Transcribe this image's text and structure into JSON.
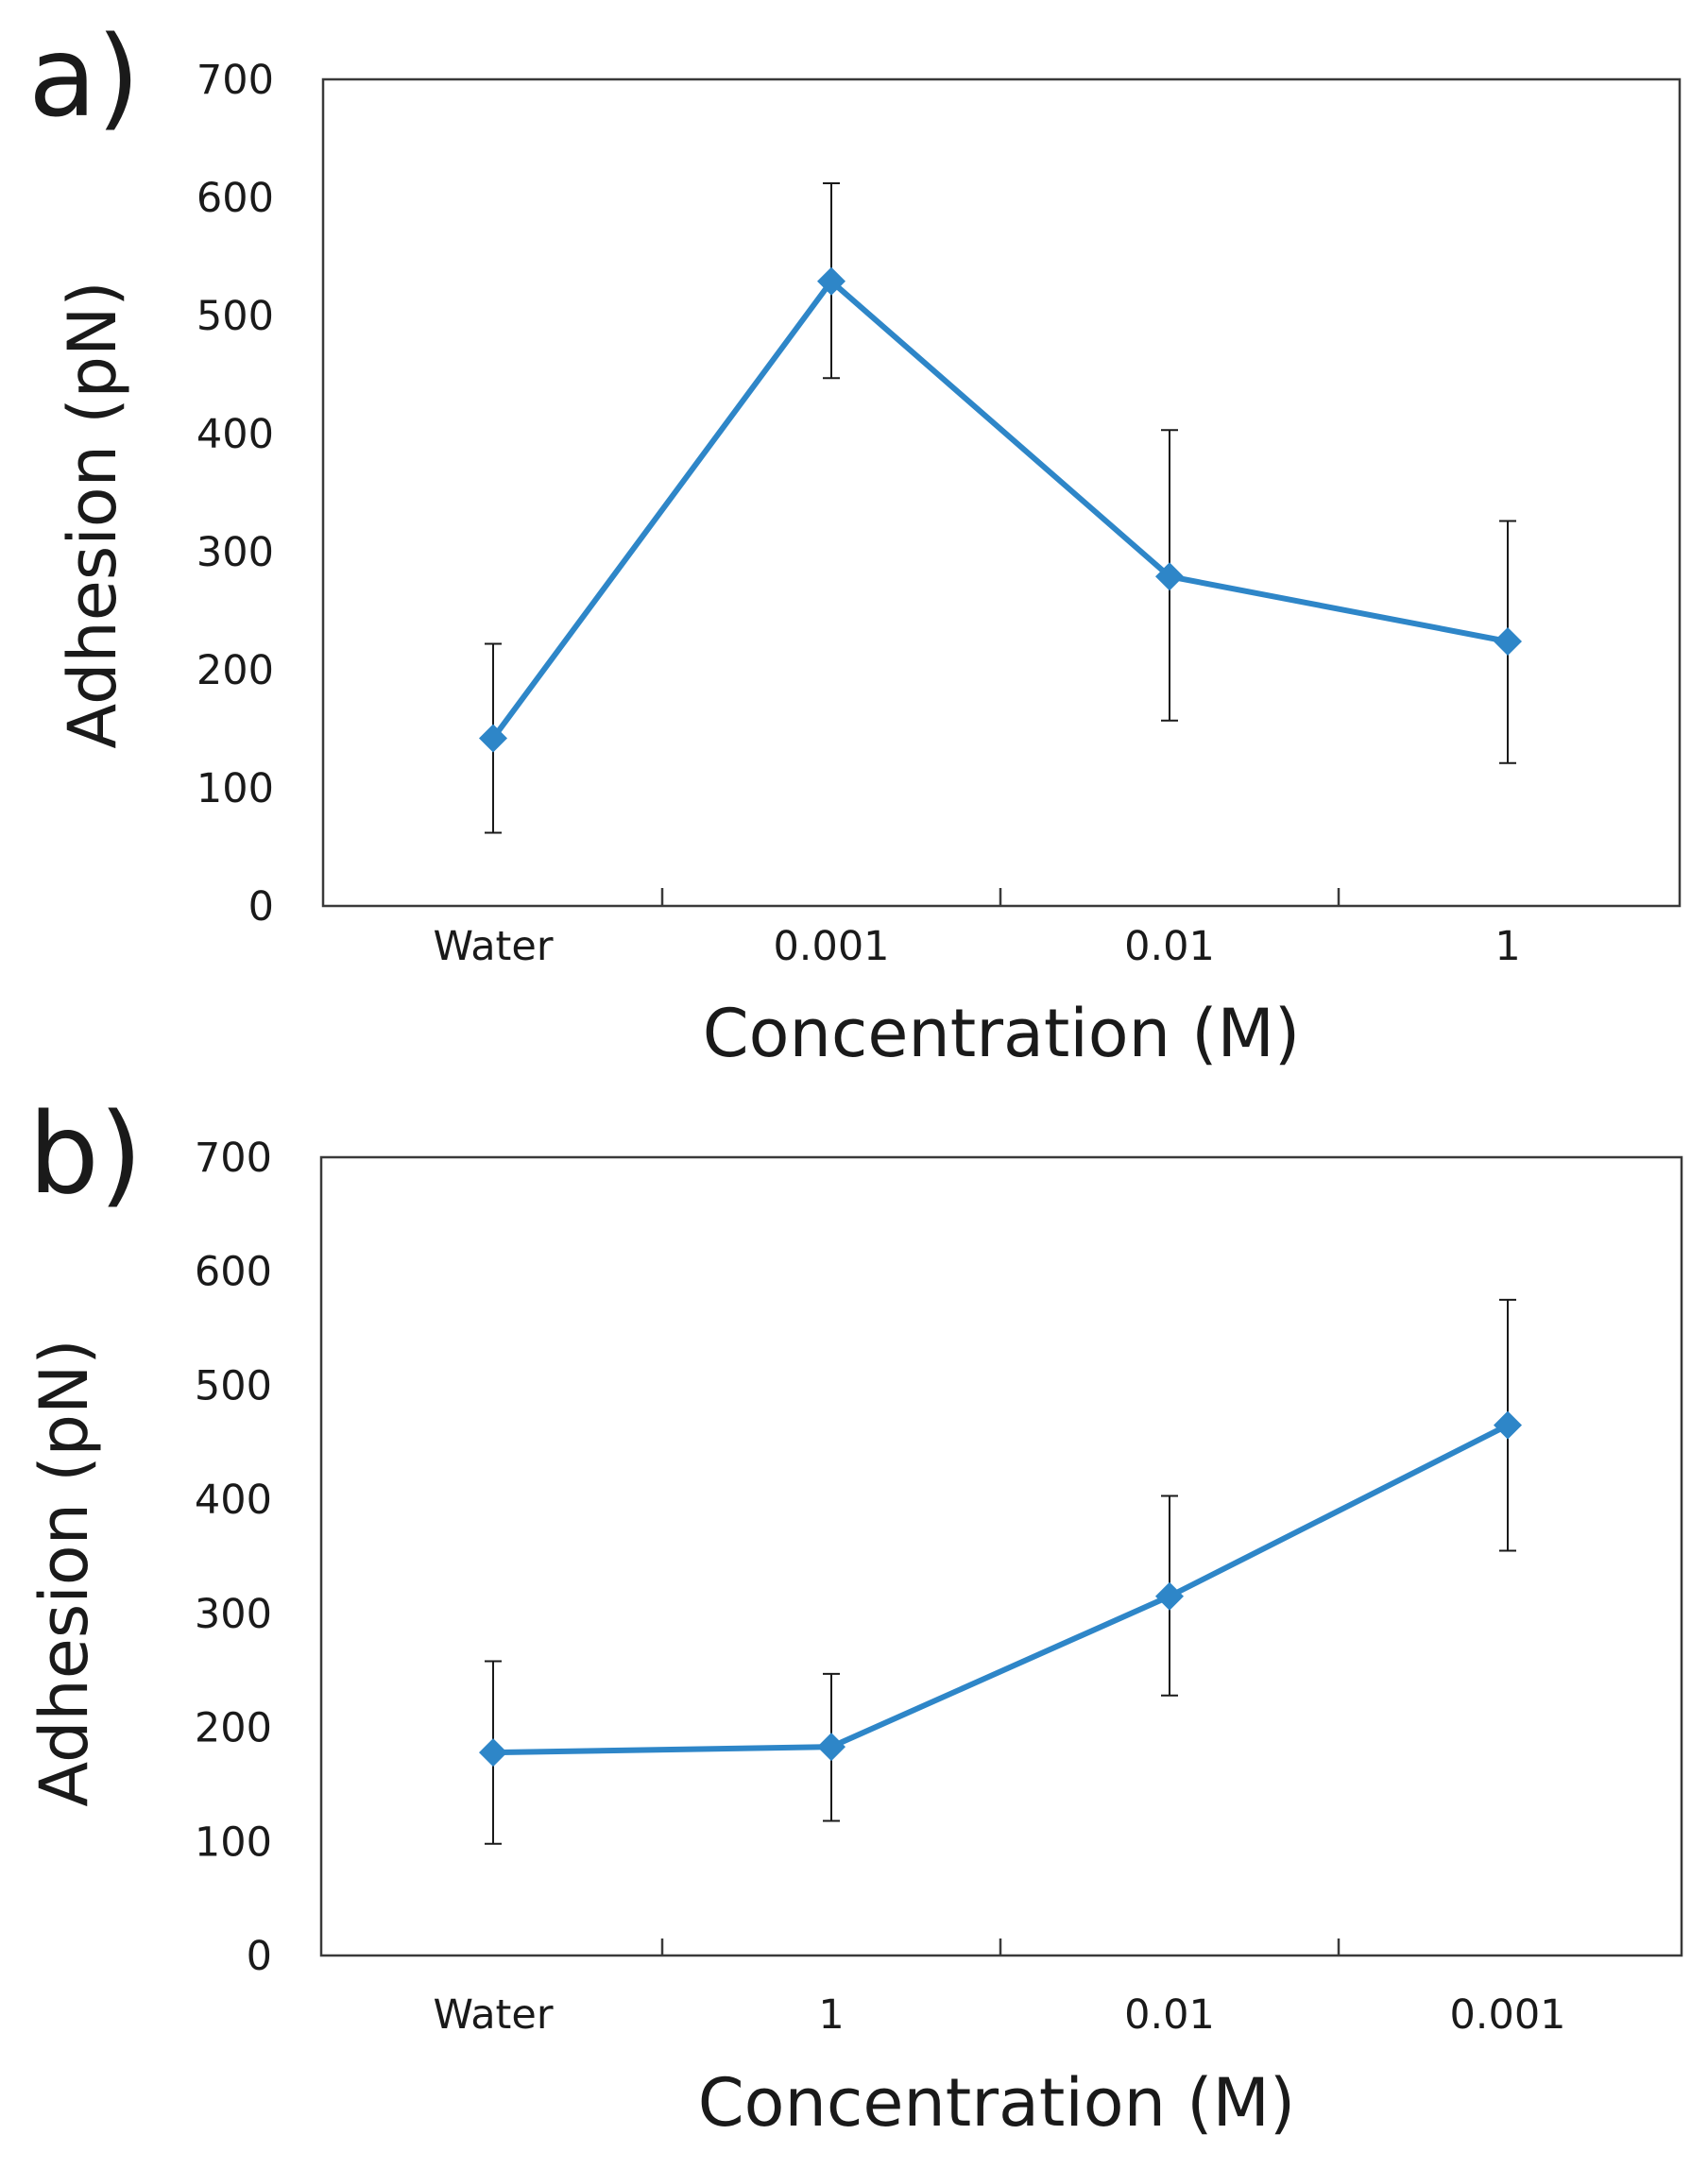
{
  "colors": {
    "series": "#2e86c8",
    "error_bar": "#1a1a1a",
    "axis": "#3a3a3a",
    "text": "#1a1a1a"
  },
  "chart_data": [
    {
      "panel": "a)",
      "type": "line",
      "title": "",
      "xlabel": "Concentration (M)",
      "ylabel": "Adhesion (pN)",
      "categories": [
        "Water",
        "0.001",
        "0.01",
        "1"
      ],
      "ylim": [
        0,
        700
      ],
      "yticks": [
        0,
        100,
        200,
        300,
        400,
        500,
        600,
        700
      ],
      "grid": false,
      "series": [
        {
          "name": "Adhesion",
          "values": [
            142,
            529,
            279,
            224
          ],
          "error_low": [
            62,
            447,
            157,
            121
          ],
          "error_high": [
            222,
            612,
            403,
            326
          ]
        }
      ]
    },
    {
      "panel": "b)",
      "type": "line",
      "title": "",
      "xlabel": "Concentration (M)",
      "ylabel": "Adhesion (pN)",
      "categories": [
        "Water",
        "1",
        "0.01",
        "0.001"
      ],
      "ylim": [
        0,
        700
      ],
      "yticks": [
        0,
        100,
        200,
        300,
        400,
        500,
        600,
        700
      ],
      "grid": false,
      "series": [
        {
          "name": "Adhesion",
          "values": [
            178,
            183,
            315,
            465
          ],
          "error_low": [
            98,
            118,
            228,
            355
          ],
          "error_high": [
            258,
            247,
            403,
            575
          ]
        }
      ]
    }
  ]
}
